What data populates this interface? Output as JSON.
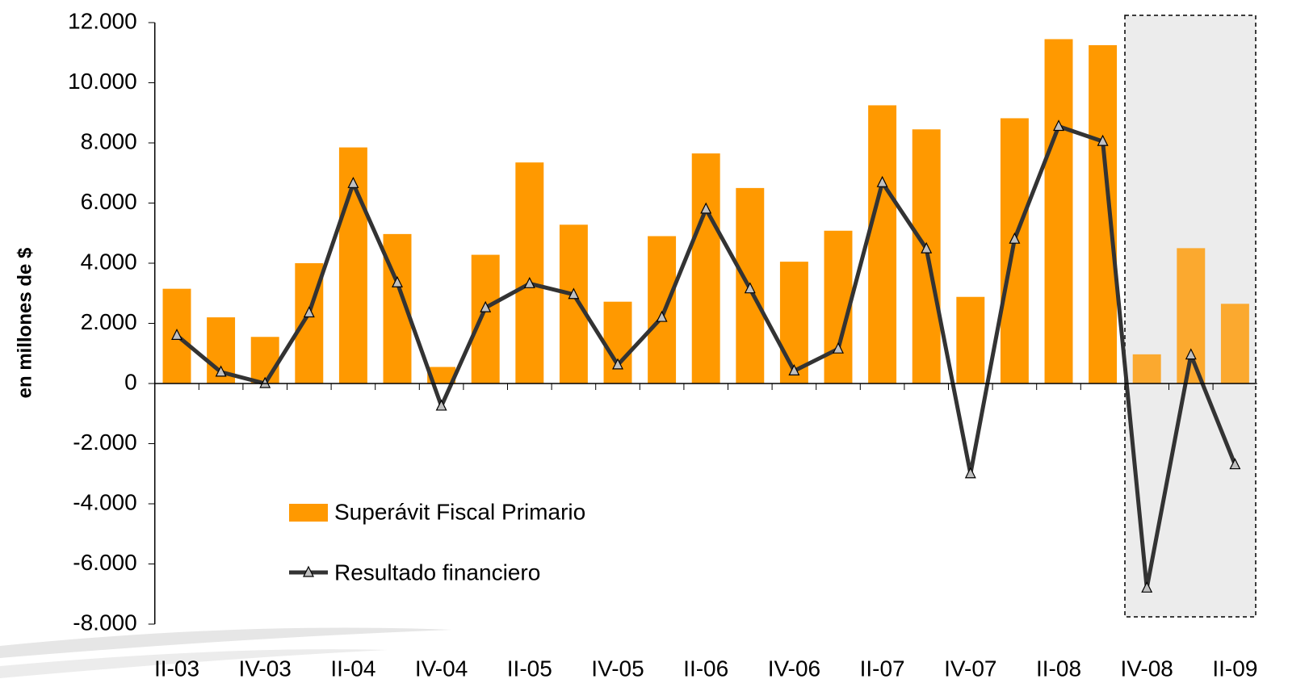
{
  "chart_data": {
    "type": "bar_line",
    "y_label": "en millones de $",
    "categories": [
      "II-03",
      null,
      "IV-03",
      null,
      "II-04",
      null,
      "IV-04",
      null,
      "II-05",
      null,
      "IV-05",
      null,
      "II-06",
      null,
      "IV-06",
      null,
      "II-07",
      null,
      "IV-07",
      null,
      "II-08",
      null,
      "IV-08",
      null,
      "II-09"
    ],
    "series": [
      {
        "name": "Superávit Fiscal Primario",
        "kind": "bar",
        "color": "#ff9900",
        "values": [
          3150,
          2200,
          1550,
          4000,
          7850,
          4970,
          550,
          4280,
          7350,
          5280,
          2720,
          4900,
          7650,
          6500,
          4050,
          5080,
          9250,
          8450,
          2880,
          8820,
          11450,
          11250,
          970,
          4500,
          2650
        ]
      },
      {
        "name": "Resultado financiero",
        "kind": "line",
        "color": "#333333",
        "values": [
          1600,
          380,
          0,
          2350,
          6650,
          3350,
          -750,
          2520,
          3320,
          2960,
          620,
          2200,
          5800,
          3150,
          420,
          1150,
          6680,
          4480,
          -3000,
          4800,
          8550,
          8050,
          -6800,
          950,
          -2700
        ]
      }
    ],
    "ylim": [
      -8000,
      12000
    ],
    "yticks": [
      {
        "value": -8000,
        "label": "-8.000"
      },
      {
        "value": -6000,
        "label": "-6.000"
      },
      {
        "value": -4000,
        "label": "-4.000"
      },
      {
        "value": -2000,
        "label": "-2.000"
      },
      0,
      {
        "value": 2000,
        "label": "2.000"
      },
      {
        "value": 4000,
        "label": "4.000"
      },
      {
        "value": 6000,
        "label": "6.000"
      },
      {
        "value": 8000,
        "label": "8.000"
      },
      {
        "value": 10000,
        "label": "10.000"
      },
      {
        "value": 12000,
        "label": "12.000"
      }
    ]
  }
}
